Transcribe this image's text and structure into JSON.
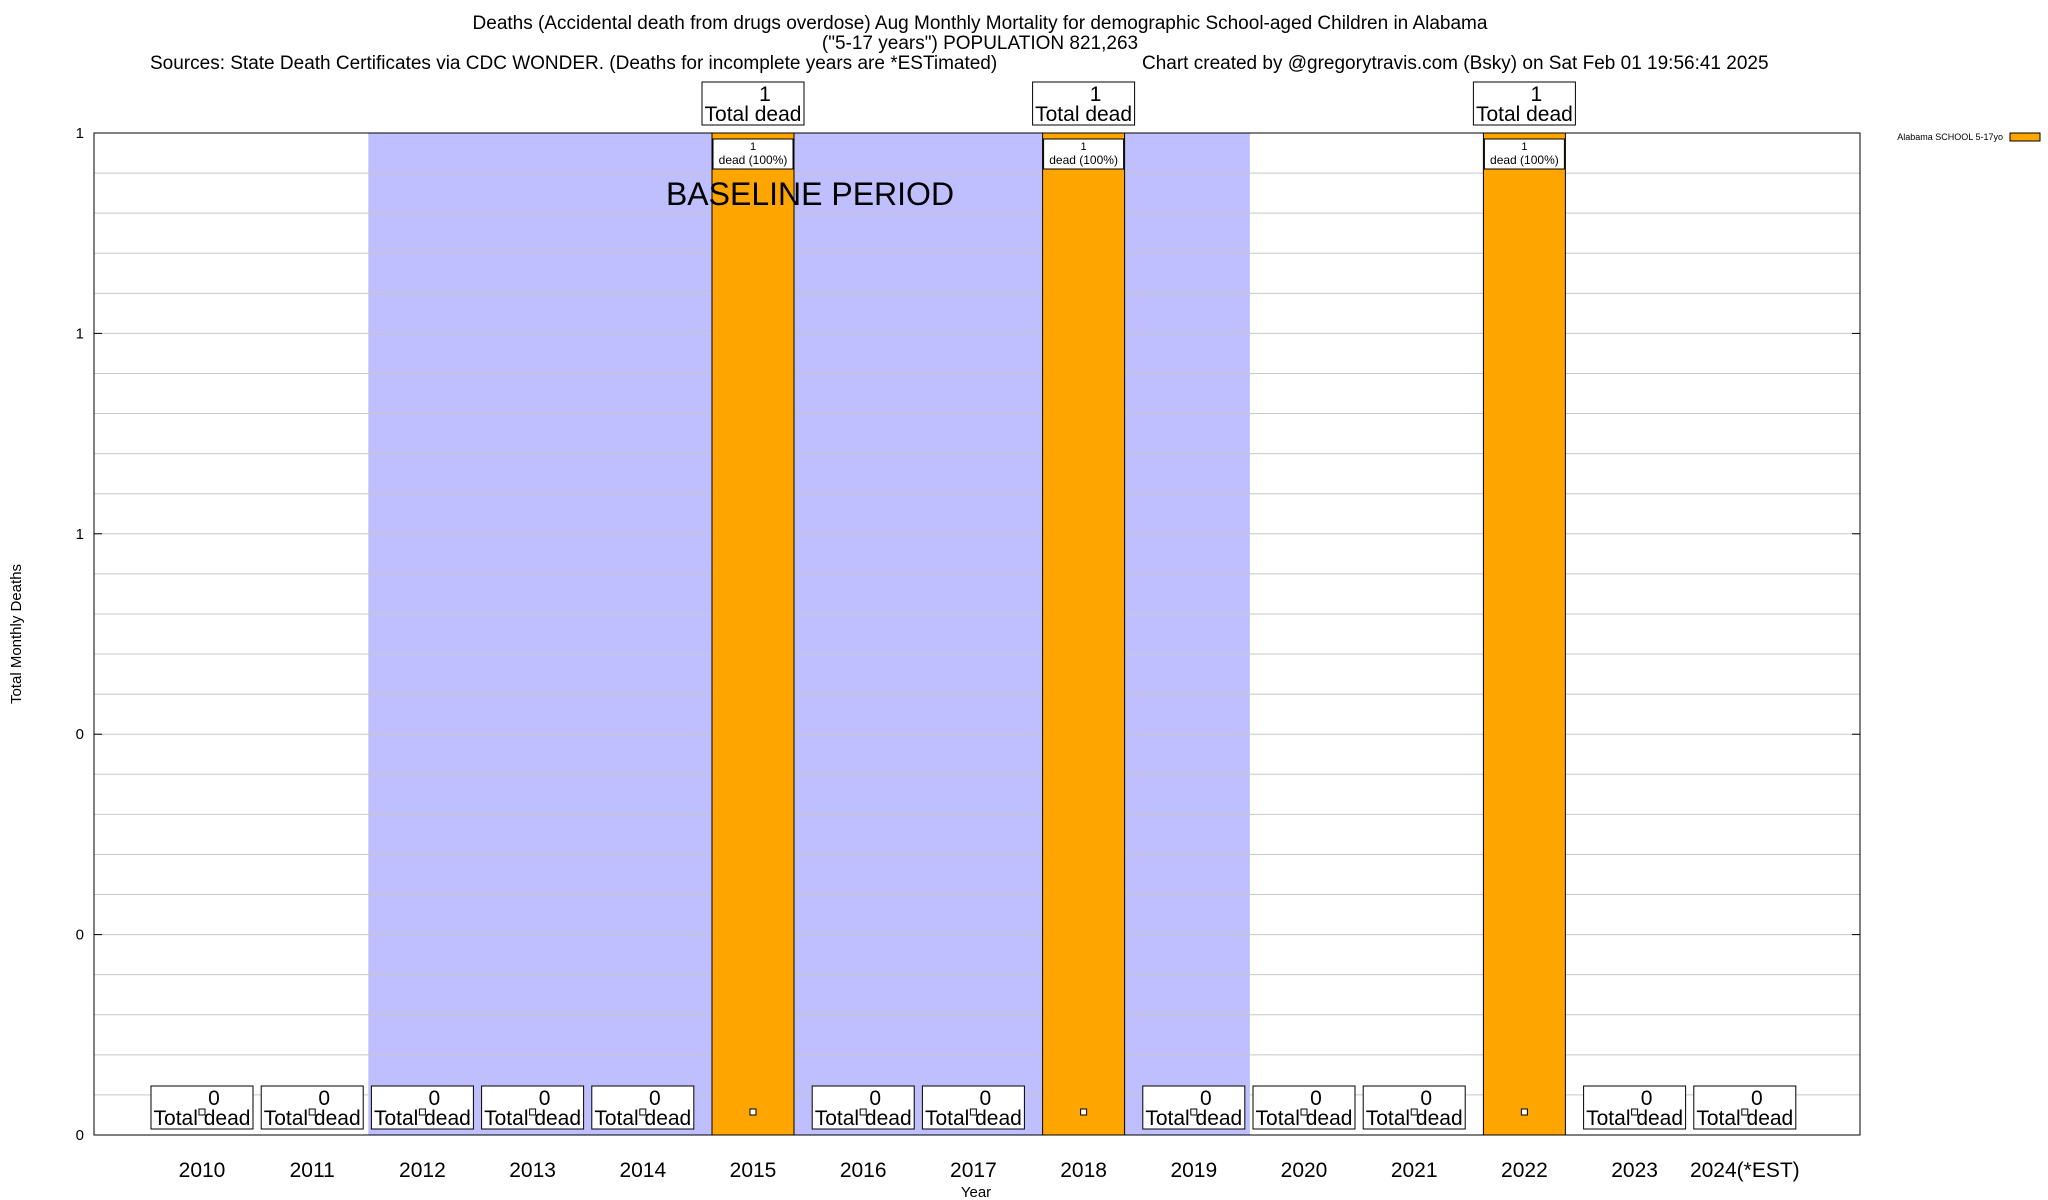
{
  "header": {
    "title_line1": "Deaths (Accidental death from drugs overdose) Aug Monthly Mortality for demographic School-aged Children in Alabama",
    "title_line2": "(\"5-17 years\") POPULATION 821,263",
    "sources": "Sources: State Death Certificates via CDC WONDER. (Deaths for incomplete years are *ESTimated)",
    "credit": "Chart created by @gregorytravis.com (Bsky) on Sat Feb 01 19:56:41 2025"
  },
  "chart_data": {
    "type": "bar",
    "xlabel": "Year",
    "ylabel": "Total Monthly Deaths",
    "ylim": [
      0,
      1
    ],
    "y_tick_labels": [
      "0",
      "0",
      "0",
      "1",
      "1",
      "1"
    ],
    "grid": true,
    "legend_placement": "top-right",
    "categories": [
      "2010",
      "2011",
      "2012",
      "2013",
      "2014",
      "2015",
      "2016",
      "2017",
      "2018",
      "2019",
      "2020",
      "2021",
      "2022",
      "2023",
      "2024(*EST)"
    ],
    "series": [
      {
        "name": "Alabama SCHOOL 5-17yo",
        "color": "#ffa500",
        "values": [
          0,
          0,
          0,
          0,
          0,
          1,
          0,
          0,
          1,
          0,
          0,
          0,
          1,
          0,
          0
        ]
      }
    ],
    "total_label_suffix": "Total dead",
    "bar_label_suffix": "dead (100%)",
    "baseline_period": {
      "label": "BASELINE PERIOD",
      "start": "2012",
      "end": "2019",
      "color": "#bfbfff"
    }
  }
}
